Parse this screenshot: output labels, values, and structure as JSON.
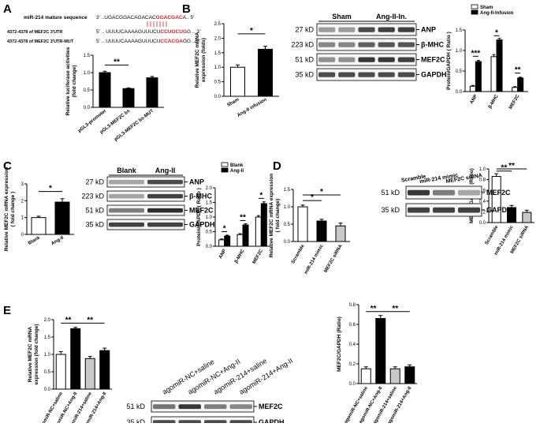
{
  "panels": {
    "A": {
      "letter": "A",
      "seq": {
        "row1_label": "miR-214 mature sequence",
        "row1_seq_pre": "3' ..UGACGGACAGACAC",
        "row1_seq_red": "GGACGAC",
        "row1_seq_post": "A.. 5'",
        "row2_label": "4372-4378 of MEF2C 3'UTR",
        "row2_seq_pre": "5' .. UUUUCAAAAGUUUCU",
        "row2_seq_red": "CCUGCUG",
        "row2_seq_post": "G .. 3'",
        "row3_label": "4372-4378 of MEF2C 3'UTR-MUT",
        "row3_seq_pre": "5' .. UUUUCAAAAGUUUCU",
        "row3_seq_red": "CCACGA",
        "row3_seq_post": "GG .. 3'"
      },
      "sig": "**"
    },
    "B": {
      "letter": "B",
      "sig_left": "*",
      "sig_right": [
        "***",
        "*",
        "**"
      ]
    },
    "C": {
      "letter": "C",
      "sig_left": "*",
      "sig_right": [
        "*",
        "**",
        "*"
      ]
    },
    "D": {
      "letter": "D",
      "sig_left": [
        "*",
        "*"
      ],
      "sig_right": [
        "**",
        "**"
      ]
    },
    "E": {
      "letter": "E",
      "sig_left": [
        "**",
        "**"
      ],
      "sig_right": [
        "**",
        "**"
      ]
    }
  },
  "colors": {
    "black_bar": "#000000",
    "white_bar": "#ffffff",
    "gray_bar": "#c8c8c8",
    "red_seq": "#d62020"
  },
  "chart_data": [
    {
      "id": "A-luciferase",
      "type": "bar",
      "categories": [
        "pGL3-promoter",
        "pGL3-MEF2C bs",
        "pGL3-MEF2C bs-MUT"
      ],
      "values": [
        1.0,
        0.54,
        0.85
      ],
      "errors": [
        0.04,
        0.02,
        0.04
      ],
      "ylabel": "Relative luciferase activities (fold change)",
      "ylim": [
        0,
        1.5
      ],
      "yticks": [
        "0.0",
        "0.5",
        "1.0",
        "1.5"
      ],
      "bar_colors": [
        "black",
        "black",
        "black"
      ]
    },
    {
      "id": "B-mRNA",
      "type": "bar",
      "categories": [
        "Sham",
        "Ang-II infusion"
      ],
      "values": [
        1.0,
        1.62
      ],
      "errors": [
        0.08,
        0.1
      ],
      "ylabel": "Relative MEF2C mRNA expression (folds)",
      "ylim": [
        0,
        2.5
      ],
      "yticks": [
        "0.0",
        "0.5",
        "1.0",
        "1.5",
        "2.0",
        "2.5"
      ],
      "bar_colors": [
        "white",
        "black"
      ]
    },
    {
      "id": "B-protein",
      "type": "bar",
      "categories": [
        "ANP",
        "β-MHC",
        "MEF2C"
      ],
      "series": [
        {
          "name": "Sham",
          "values": [
            0.13,
            0.85,
            0.1
          ],
          "errors": [
            0.02,
            0.05,
            0.02
          ]
        },
        {
          "name": "Ang-II-Infusion",
          "values": [
            0.73,
            1.26,
            0.33
          ],
          "errors": [
            0.03,
            0.04,
            0.02
          ]
        }
      ],
      "ylabel": "Protein/GAPDH ( Ratio )",
      "ylim": [
        0,
        1.5
      ],
      "yticks": [
        "0.0",
        "0.5",
        "1.0",
        "1.5"
      ],
      "legend": "top"
    },
    {
      "id": "C-mRNA",
      "type": "bar",
      "categories": [
        "Blank",
        "Ang-II"
      ],
      "values": [
        1.0,
        1.92
      ],
      "errors": [
        0.08,
        0.2
      ],
      "ylabel": "Relative MEF2C mRNA expression ( fold change )",
      "ylim": [
        0,
        3
      ],
      "yticks": [
        "0",
        "1",
        "2",
        "3"
      ],
      "bar_colors": [
        "white",
        "black"
      ]
    },
    {
      "id": "C-protein",
      "type": "bar",
      "categories": [
        "ANP",
        "β-MHC",
        "MEF2C"
      ],
      "series": [
        {
          "name": "Blank",
          "values": [
            0.22,
            0.4,
            1.0
          ],
          "errors": [
            0.03,
            0.03,
            0.05
          ]
        },
        {
          "name": "Ang-II",
          "values": [
            0.35,
            0.73,
            1.46
          ],
          "errors": [
            0.03,
            0.04,
            0.06
          ]
        }
      ],
      "ylabel": "Protein/GAPDH ( Ratio )",
      "ylim": [
        0,
        2
      ],
      "yticks": [
        "0.0",
        "0.5",
        "1.0",
        "1.5",
        "2.0"
      ],
      "legend": "top"
    },
    {
      "id": "D-mRNA",
      "type": "bar",
      "categories": [
        "Scramble",
        "miR-214 mimic",
        "MEF2C siRNA"
      ],
      "values": [
        1.0,
        0.59,
        0.45
      ],
      "errors": [
        0.05,
        0.05,
        0.08
      ],
      "ylabel": "Relative MEF2C mRNA expression ( fold change)",
      "ylim": [
        0,
        1.5
      ],
      "yticks": [
        "0.0",
        "0.5",
        "1.0",
        "1.5"
      ],
      "bar_colors": [
        "white",
        "black",
        "gray"
      ]
    },
    {
      "id": "D-protein",
      "type": "bar",
      "categories": [
        "Scramble",
        "miR-214 mimic",
        "MEF2C siRNA"
      ],
      "values": [
        0.86,
        0.28,
        0.19
      ],
      "errors": [
        0.05,
        0.04,
        0.04
      ],
      "ylabel": "MEF2C/GAPDH (Ratio)",
      "ylim": [
        0,
        1.0
      ],
      "yticks": [
        "0.0",
        "0.2",
        "0.4",
        "0.6",
        "0.8",
        "1.0"
      ],
      "bar_colors": [
        "white",
        "black",
        "gray"
      ]
    },
    {
      "id": "E-mRNA",
      "type": "bar",
      "categories": [
        "agomiR-NC+saline",
        "agomiR-NC+Ang-II",
        "agomiR-214+saline",
        "agomiR-214+Ang-II"
      ],
      "values": [
        1.0,
        1.74,
        0.88,
        1.11
      ],
      "errors": [
        0.08,
        0.04,
        0.06,
        0.07
      ],
      "ylabel": "Relative MEF2C mRNA expression (fold change)",
      "ylim": [
        0,
        2.0
      ],
      "yticks": [
        "0.0",
        "0.5",
        "1.0",
        "1.5",
        "2.0"
      ],
      "bar_colors": [
        "white",
        "black",
        "gray",
        "black"
      ]
    },
    {
      "id": "E-protein",
      "type": "bar",
      "categories": [
        "agomiR-NC+saline",
        "agomiR-NC+Ang-II",
        "agomiR-214+saline",
        "agomiR-214+Ang-II"
      ],
      "values": [
        0.15,
        0.66,
        0.15,
        0.17
      ],
      "errors": [
        0.02,
        0.03,
        0.02,
        0.02
      ],
      "ylabel": "MEF2C/GAPDH (Ratio)",
      "ylim": [
        0,
        0.8
      ],
      "yticks": [
        "0.0",
        "0.2",
        "0.4",
        "0.6",
        "0.8"
      ],
      "bar_colors": [
        "white",
        "black",
        "gray",
        "black"
      ]
    }
  ],
  "blots": {
    "B": {
      "groups": [
        "Sham",
        "Ang-II-In."
      ],
      "bands": [
        {
          "kd": "27 kD",
          "name": "ANP",
          "intensities": [
            0.4,
            0.4,
            0.8,
            0.85,
            0.85
          ]
        },
        {
          "kd": "223 kD",
          "name": "β-MHC",
          "intensities": [
            0.5,
            0.5,
            0.7,
            0.75,
            0.75
          ]
        },
        {
          "kd": "51 kD",
          "name": "MEF2C",
          "intensities": [
            0.45,
            0.45,
            0.9,
            0.9,
            0.85
          ]
        },
        {
          "kd": "35 kD",
          "name": "GAPDH",
          "intensities": [
            0.8,
            0.8,
            0.8,
            0.8,
            0.8
          ]
        }
      ]
    },
    "C": {
      "groups": [
        "Blank",
        "Ang-II"
      ],
      "bands": [
        {
          "kd": "27 kD",
          "name": "ANP",
          "intensities": [
            0.35,
            0.8
          ]
        },
        {
          "kd": "223 kD",
          "name": "β-MHC",
          "intensities": [
            0.35,
            0.85
          ]
        },
        {
          "kd": "51 kD",
          "name": "MEF2C",
          "intensities": [
            0.55,
            0.95
          ]
        },
        {
          "kd": "35 kD",
          "name": "GAPDH",
          "intensities": [
            0.85,
            0.85
          ]
        }
      ]
    },
    "D": {
      "groups": [
        "Scramble",
        "miR-214 mimic",
        "MEF2C siRNA"
      ],
      "bands": [
        {
          "kd": "51 kD",
          "name": "MEF2C",
          "intensities": [
            0.9,
            0.55,
            0.35
          ]
        },
        {
          "kd": "35 kD",
          "name": "GAPDH",
          "intensities": [
            0.85,
            0.85,
            0.85
          ]
        }
      ]
    },
    "E": {
      "groups": [
        "agomiR-NC+saline",
        "agomiR-NC+Ang-II",
        "agomiR-214+saline",
        "agomiR-214+Ang-II"
      ],
      "bands": [
        {
          "kd": "51 kD",
          "name": "MEF2C",
          "intensities": [
            0.6,
            0.9,
            0.55,
            0.5
          ]
        },
        {
          "kd": "35 kD",
          "name": "GAPDH",
          "intensities": [
            0.8,
            0.8,
            0.8,
            0.8
          ]
        }
      ]
    }
  }
}
